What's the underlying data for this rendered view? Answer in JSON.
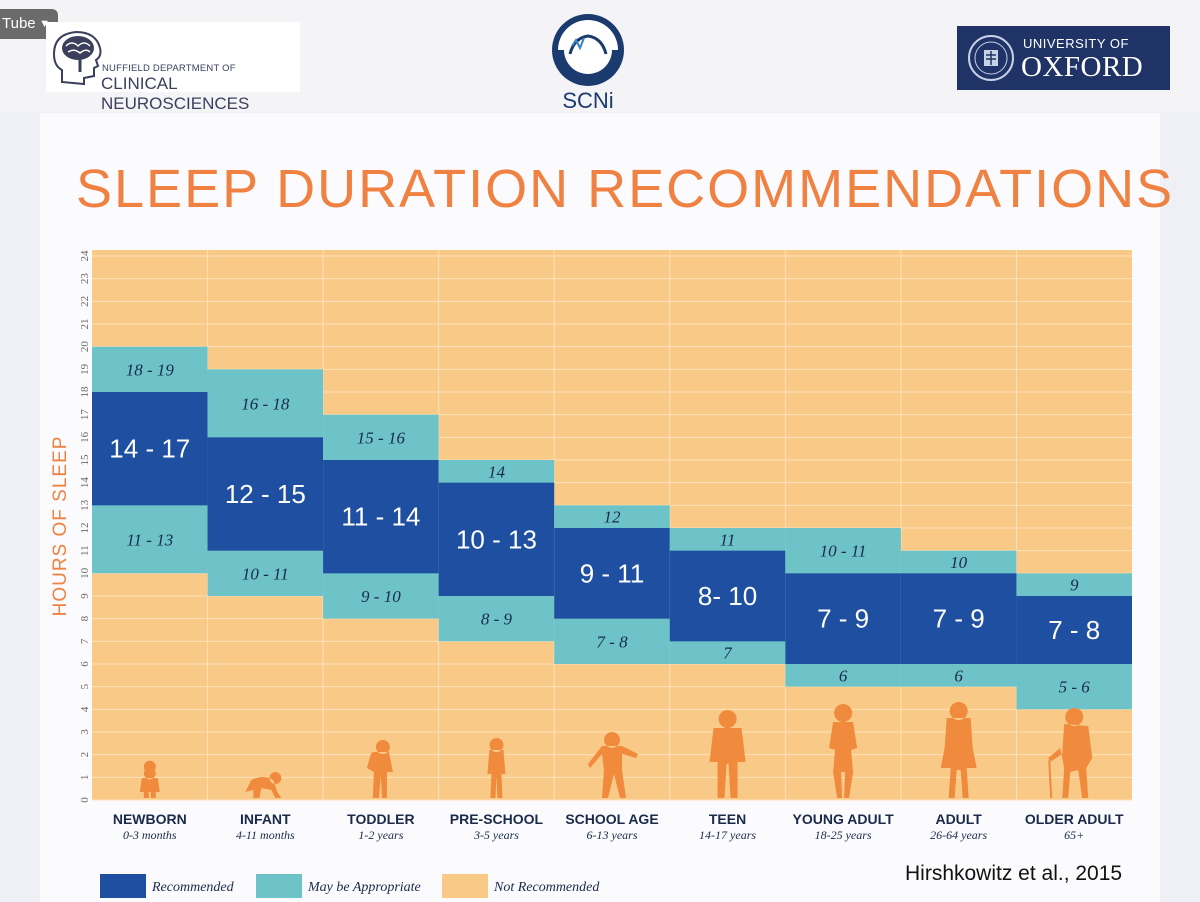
{
  "browser": {
    "pill_label": "Tube",
    "caret": "▼"
  },
  "logos": {
    "ndcn": {
      "line1": "NUFFIELD DEPARTMENT OF",
      "line2": "CLINICAL NEUROSCIENCES",
      "icon": "brain-head-icon"
    },
    "scni": {
      "text": "SCNi",
      "icon": "scni-emblem-icon"
    },
    "oxford": {
      "line1": "UNIVERSITY OF",
      "line2": "OXFORD",
      "icon": "oxford-crest-icon"
    }
  },
  "credit": "Hirshkowitz et al., 2015",
  "colors": {
    "background": "#f9c987",
    "recommended": "#1f4fa0",
    "may_be_appropriate": "#6dc3c8",
    "title": "#ef8243",
    "category_text": "#1a2a4a",
    "silhouette": "#f08a3c"
  },
  "chart_data": {
    "type": "range-bar",
    "title": "SLEEP DURATION RECOMMENDATIONS",
    "ylabel": "HOURS OF SLEEP",
    "ylim": [
      0,
      24
    ],
    "yticks": [
      "0",
      "1",
      "2",
      "3",
      "4",
      "5",
      "6",
      "7",
      "8",
      "9",
      "10",
      "11",
      "12",
      "13",
      "14",
      "15",
      "16",
      "17",
      "18",
      "19",
      "20",
      "21",
      "22",
      "23",
      "24"
    ],
    "grid": true,
    "categories": [
      {
        "name": "NEWBORN",
        "age": "0-3 months",
        "silhouette": "newborn-silhouette",
        "recommended": [
          14,
          17
        ],
        "rec_label": "14 - 17",
        "may_upper": [
          18,
          19
        ],
        "upper_label": "18 - 19",
        "may_lower": [
          11,
          13
        ],
        "lower_label": "11 - 13"
      },
      {
        "name": "INFANT",
        "age": "4-11 months",
        "silhouette": "infant-silhouette",
        "recommended": [
          12,
          15
        ],
        "rec_label": "12 - 15",
        "may_upper": [
          16,
          18
        ],
        "upper_label": "16 - 18",
        "may_lower": [
          10,
          11
        ],
        "lower_label": "10 - 11"
      },
      {
        "name": "TODDLER",
        "age": "1-2 years",
        "silhouette": "toddler-silhouette",
        "recommended": [
          11,
          14
        ],
        "rec_label": "11 - 14",
        "may_upper": [
          15,
          16
        ],
        "upper_label": "15 - 16",
        "may_lower": [
          9,
          10
        ],
        "lower_label": "9 - 10"
      },
      {
        "name": "PRE-SCHOOL",
        "age": "3-5 years",
        "silhouette": "preschool-silhouette",
        "recommended": [
          10,
          13
        ],
        "rec_label": "10 - 13",
        "may_upper": [
          14,
          14
        ],
        "upper_label": "14",
        "may_lower": [
          8,
          9
        ],
        "lower_label": "8 - 9"
      },
      {
        "name": "SCHOOL AGE",
        "age": "6-13 years",
        "silhouette": "school-age-silhouette",
        "recommended": [
          9,
          11
        ],
        "rec_label": "9 - 11",
        "may_upper": [
          12,
          12
        ],
        "upper_label": "12",
        "may_lower": [
          7,
          8
        ],
        "lower_label": "7 - 8"
      },
      {
        "name": "TEEN",
        "age": "14-17 years",
        "silhouette": "teen-silhouette",
        "recommended": [
          8,
          10
        ],
        "rec_label": "8- 10",
        "may_upper": [
          11,
          11
        ],
        "upper_label": "11",
        "may_lower": [
          7,
          7
        ],
        "lower_label": "7"
      },
      {
        "name": "YOUNG ADULT",
        "age": "18-25 years",
        "silhouette": "young-adult-silhouette",
        "recommended": [
          7,
          9
        ],
        "rec_label": "7 - 9",
        "may_upper": [
          10,
          11
        ],
        "upper_label": "10 - 11",
        "may_lower": [
          6,
          6
        ],
        "lower_label": "6"
      },
      {
        "name": "ADULT",
        "age": "26-64 years",
        "silhouette": "adult-silhouette",
        "recommended": [
          7,
          9
        ],
        "rec_label": "7 - 9",
        "may_upper": [
          10,
          10
        ],
        "upper_label": "10",
        "may_lower": [
          6,
          6
        ],
        "lower_label": "6"
      },
      {
        "name": "OLDER ADULT",
        "age": "65+",
        "silhouette": "older-adult-silhouette",
        "recommended": [
          7,
          8
        ],
        "rec_label": "7 - 8",
        "may_upper": [
          9,
          9
        ],
        "upper_label": "9",
        "may_lower": [
          5,
          6
        ],
        "lower_label": "5 - 6"
      }
    ],
    "legend": {
      "placement": "bottom-left",
      "items": [
        {
          "label": "Recommended",
          "color": "#1f4fa0"
        },
        {
          "label": "May be Appropriate",
          "color": "#6dc3c8"
        },
        {
          "label": "Not Recommended",
          "color": "#f9c987"
        }
      ]
    }
  }
}
